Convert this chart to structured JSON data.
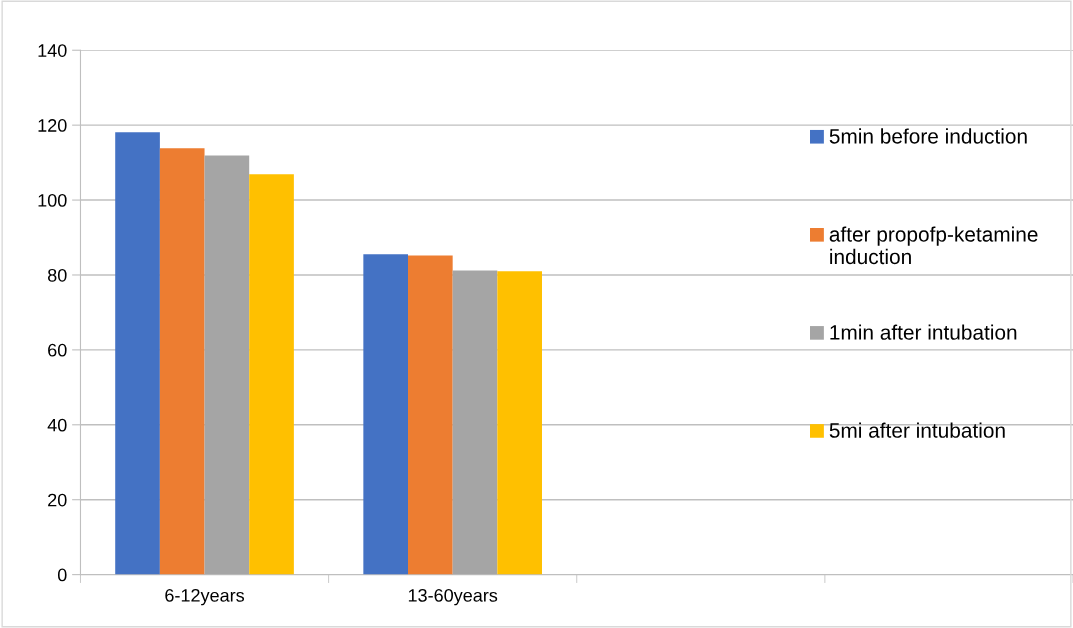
{
  "chart_data": {
    "type": "bar",
    "categories": [
      "6-12years",
      "13-60years",
      null,
      null
    ],
    "series": [
      {
        "name": "5min before induction",
        "color": "#4472c4",
        "values": [
          118.1,
          85.5,
          null,
          null
        ]
      },
      {
        "name": "after propofp-ketamine induction",
        "color": "#ed7d31",
        "values": [
          113.8,
          85.2,
          null,
          null
        ]
      },
      {
        "name": "1min after intubation",
        "color": "#a5a5a5",
        "values": [
          111.9,
          81.2,
          null,
          null
        ]
      },
      {
        "name": "5mi after intubation",
        "color": "#ffc000",
        "values": [
          106.9,
          81.0,
          null,
          null
        ]
      }
    ],
    "ylim": [
      0,
      140
    ],
    "yticks": [
      0,
      20,
      40,
      60,
      80,
      100,
      120,
      140
    ],
    "grid": "y",
    "legend": "right"
  }
}
